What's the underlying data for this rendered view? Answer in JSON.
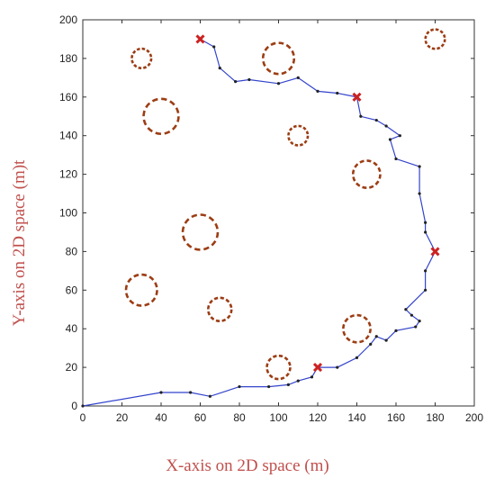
{
  "chart_data": {
    "type": "line",
    "title": "",
    "xlabel": "X-axis on 2D space (m)",
    "ylabel": "Y-axis on 2D space (m)t",
    "xlim": [
      0,
      200
    ],
    "ylim": [
      0,
      200
    ],
    "xticks": [
      "0",
      "20",
      "40",
      "60",
      "80",
      "100",
      "120",
      "140",
      "160",
      "180",
      "200"
    ],
    "yticks": [
      "0",
      "20",
      "40",
      "60",
      "80",
      "100",
      "120",
      "140",
      "160",
      "180",
      "200"
    ],
    "grid": false,
    "colors": {
      "path": "#3344cc",
      "obstacle": "#9c3d14",
      "waypoint": "#cc2222",
      "axis": "#333333"
    },
    "path": [
      [
        0,
        0
      ],
      [
        40,
        7
      ],
      [
        55,
        7
      ],
      [
        65,
        5
      ],
      [
        80,
        10
      ],
      [
        95,
        10
      ],
      [
        105,
        11
      ],
      [
        110,
        13
      ],
      [
        117,
        15
      ],
      [
        120,
        20
      ],
      [
        130,
        20
      ],
      [
        140,
        25
      ],
      [
        147,
        32
      ],
      [
        150,
        36
      ],
      [
        155,
        34
      ],
      [
        160,
        39
      ],
      [
        170,
        41
      ],
      [
        172,
        44
      ],
      [
        168,
        47
      ],
      [
        165,
        50
      ],
      [
        175,
        60
      ],
      [
        175,
        70
      ],
      [
        180,
        80
      ],
      [
        175,
        90
      ],
      [
        175,
        95
      ],
      [
        172,
        110
      ],
      [
        172,
        124
      ],
      [
        160,
        128
      ],
      [
        157,
        138
      ],
      [
        162,
        140
      ],
      [
        155,
        145
      ],
      [
        150,
        148
      ],
      [
        142,
        150
      ],
      [
        140,
        160
      ],
      [
        130,
        162
      ],
      [
        120,
        163
      ],
      [
        110,
        170
      ],
      [
        100,
        167
      ],
      [
        85,
        169
      ],
      [
        78,
        168
      ],
      [
        70,
        175
      ],
      [
        67,
        186
      ],
      [
        60,
        190
      ]
    ],
    "waypoints": [
      [
        60,
        190
      ],
      [
        140,
        160
      ],
      [
        180,
        80
      ],
      [
        120,
        20
      ]
    ],
    "obstacles": [
      {
        "x": 30,
        "y": 180,
        "r": 5
      },
      {
        "x": 100,
        "y": 180,
        "r": 8
      },
      {
        "x": 180,
        "y": 190,
        "r": 5
      },
      {
        "x": 40,
        "y": 150,
        "r": 9
      },
      {
        "x": 110,
        "y": 140,
        "r": 5
      },
      {
        "x": 145,
        "y": 120,
        "r": 7
      },
      {
        "x": 60,
        "y": 90,
        "r": 9
      },
      {
        "x": 30,
        "y": 60,
        "r": 8
      },
      {
        "x": 70,
        "y": 50,
        "r": 6
      },
      {
        "x": 140,
        "y": 40,
        "r": 7
      },
      {
        "x": 100,
        "y": 20,
        "r": 6
      }
    ]
  }
}
